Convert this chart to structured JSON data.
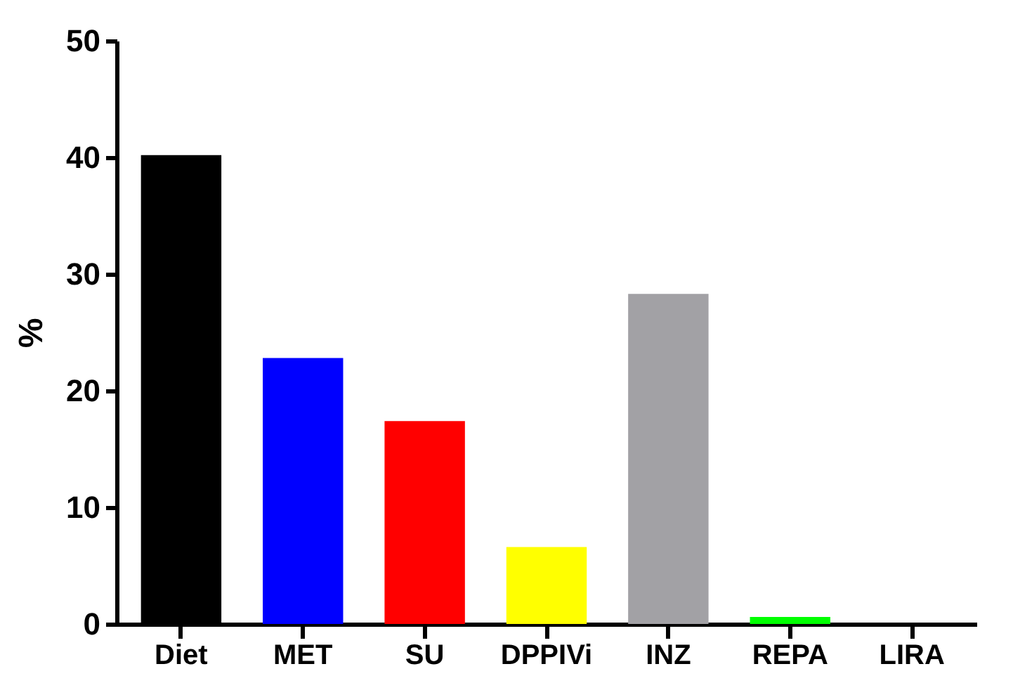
{
  "chart_data": {
    "type": "bar",
    "ylabel": "%",
    "categories": [
      "Diet",
      "MET",
      "SU",
      "DPPIVi",
      "INZ",
      "REPA",
      "LIRA"
    ],
    "values": [
      40.2,
      22.8,
      17.4,
      6.6,
      28.3,
      0.6,
      0
    ],
    "colors": [
      "#000000",
      "#0000ff",
      "#ff0000",
      "#ffff00",
      "#a2a1a5",
      "#00ff00",
      "#ffffff"
    ],
    "ylim": [
      0,
      50
    ],
    "yticks": [
      0,
      10,
      20,
      30,
      40,
      50
    ],
    "grid": false
  }
}
